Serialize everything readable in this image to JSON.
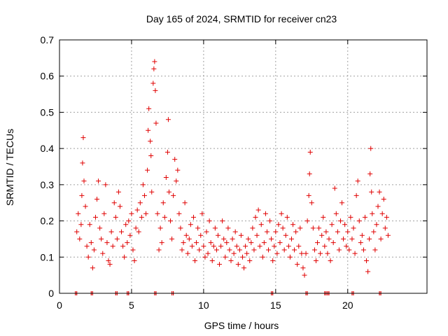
{
  "chart_data": {
    "type": "scatter",
    "title": "Day 165 of 2024, SRMTID for receiver cn23",
    "xlabel": "GPS time / hours",
    "ylabel": "SRMTID / TECUs",
    "xlim": [
      0,
      25.5
    ],
    "ylim": [
      0,
      0.7
    ],
    "xticks": [
      0,
      5,
      10,
      15,
      20
    ],
    "xtick_labels": [
      "0",
      "5",
      "10",
      "15",
      "20"
    ],
    "yticks": [
      0,
      0.1,
      0.2,
      0.3,
      0.4,
      0.5,
      0.6,
      0.7
    ],
    "ytick_labels": [
      "0",
      "0.1",
      "0.2",
      "0.3",
      "0.4",
      "0.5",
      "0.6",
      "0.7"
    ],
    "grid": true,
    "marker": "+",
    "series_color": "#e00000",
    "series": [
      {
        "name": "SRMTID",
        "points": [
          [
            1.2,
            0.17
          ],
          [
            1.3,
            0.22
          ],
          [
            1.4,
            0.15
          ],
          [
            1.5,
            0.19
          ],
          [
            1.55,
            0.27
          ],
          [
            1.6,
            0.36
          ],
          [
            1.65,
            0.43
          ],
          [
            1.7,
            0.31
          ],
          [
            1.8,
            0.24
          ],
          [
            1.9,
            0.13
          ],
          [
            2.0,
            0.1
          ],
          [
            2.1,
            0.19
          ],
          [
            2.2,
            0.14
          ],
          [
            2.3,
            0.07
          ],
          [
            2.4,
            0.12
          ],
          [
            2.5,
            0.21
          ],
          [
            2.6,
            0.26
          ],
          [
            2.7,
            0.31
          ],
          [
            2.8,
            0.18
          ],
          [
            2.9,
            0.15
          ],
          [
            3.0,
            0.11
          ],
          [
            3.1,
            0.22
          ],
          [
            3.2,
            0.3
          ],
          [
            3.3,
            0.14
          ],
          [
            3.4,
            0.09
          ],
          [
            3.5,
            0.08
          ],
          [
            3.6,
            0.17
          ],
          [
            3.7,
            0.13
          ],
          [
            3.8,
            0.25
          ],
          [
            3.9,
            0.21
          ],
          [
            4.0,
            0.15
          ],
          [
            4.1,
            0.28
          ],
          [
            4.2,
            0.24
          ],
          [
            4.3,
            0.17
          ],
          [
            4.4,
            0.13
          ],
          [
            4.5,
            0.1
          ],
          [
            4.6,
            0.19
          ],
          [
            4.7,
            0.14
          ],
          [
            4.8,
            0.2
          ],
          [
            4.9,
            0.16
          ],
          [
            5.0,
            0.22
          ],
          [
            5.1,
            0.12
          ],
          [
            5.2,
            0.09
          ],
          [
            5.3,
            0.18
          ],
          [
            5.4,
            0.23
          ],
          [
            5.5,
            0.17
          ],
          [
            5.6,
            0.25
          ],
          [
            5.7,
            0.21
          ],
          [
            5.8,
            0.3
          ],
          [
            5.9,
            0.27
          ],
          [
            6.0,
            0.22
          ],
          [
            6.1,
            0.34
          ],
          [
            6.15,
            0.45
          ],
          [
            6.2,
            0.51
          ],
          [
            6.3,
            0.42
          ],
          [
            6.35,
            0.38
          ],
          [
            6.4,
            0.28
          ],
          [
            6.5,
            0.58
          ],
          [
            6.55,
            0.62
          ],
          [
            6.6,
            0.64
          ],
          [
            6.65,
            0.56
          ],
          [
            6.7,
            0.47
          ],
          [
            6.8,
            0.22
          ],
          [
            6.9,
            0.12
          ],
          [
            7.0,
            0.18
          ],
          [
            7.1,
            0.14
          ],
          [
            7.2,
            0.25
          ],
          [
            7.3,
            0.21
          ],
          [
            7.4,
            0.32
          ],
          [
            7.5,
            0.39
          ],
          [
            7.55,
            0.48
          ],
          [
            7.6,
            0.28
          ],
          [
            7.7,
            0.2
          ],
          [
            7.8,
            0.15
          ],
          [
            7.9,
            0.27
          ],
          [
            8.0,
            0.37
          ],
          [
            8.1,
            0.31
          ],
          [
            8.2,
            0.34
          ],
          [
            8.3,
            0.22
          ],
          [
            8.4,
            0.18
          ],
          [
            8.5,
            0.12
          ],
          [
            8.6,
            0.14
          ],
          [
            8.7,
            0.25
          ],
          [
            8.8,
            0.16
          ],
          [
            8.9,
            0.11
          ],
          [
            9.0,
            0.15
          ],
          [
            9.1,
            0.19
          ],
          [
            9.2,
            0.13
          ],
          [
            9.3,
            0.21
          ],
          [
            9.4,
            0.09
          ],
          [
            9.5,
            0.14
          ],
          [
            9.6,
            0.18
          ],
          [
            9.7,
            0.12
          ],
          [
            9.8,
            0.16
          ],
          [
            9.9,
            0.22
          ],
          [
            10.0,
            0.13
          ],
          [
            10.1,
            0.1
          ],
          [
            10.2,
            0.17
          ],
          [
            10.3,
            0.11
          ],
          [
            10.4,
            0.2
          ],
          [
            10.5,
            0.14
          ],
          [
            10.6,
            0.09
          ],
          [
            10.7,
            0.13
          ],
          [
            10.8,
            0.18
          ],
          [
            10.9,
            0.12
          ],
          [
            11.0,
            0.16
          ],
          [
            11.1,
            0.08
          ],
          [
            11.2,
            0.13
          ],
          [
            11.3,
            0.2
          ],
          [
            11.4,
            0.15
          ],
          [
            11.5,
            0.1
          ],
          [
            11.6,
            0.14
          ],
          [
            11.7,
            0.18
          ],
          [
            11.8,
            0.12
          ],
          [
            11.9,
            0.09
          ],
          [
            12.0,
            0.15
          ],
          [
            12.1,
            0.11
          ],
          [
            12.2,
            0.17
          ],
          [
            12.3,
            0.13
          ],
          [
            12.4,
            0.08
          ],
          [
            12.5,
            0.12
          ],
          [
            12.6,
            0.16
          ],
          [
            12.7,
            0.1
          ],
          [
            12.8,
            0.07
          ],
          [
            12.9,
            0.13
          ],
          [
            13.0,
            0.11
          ],
          [
            13.1,
            0.15
          ],
          [
            13.2,
            0.09
          ],
          [
            13.3,
            0.14
          ],
          [
            13.4,
            0.18
          ],
          [
            13.5,
            0.12
          ],
          [
            13.6,
            0.21
          ],
          [
            13.7,
            0.16
          ],
          [
            13.8,
            0.23
          ],
          [
            13.9,
            0.13
          ],
          [
            14.0,
            0.19
          ],
          [
            14.1,
            0.1
          ],
          [
            14.2,
            0.14
          ],
          [
            14.3,
            0.22
          ],
          [
            14.4,
            0.17
          ],
          [
            14.5,
            0.12
          ],
          [
            14.6,
            0.2
          ],
          [
            14.7,
            0.15
          ],
          [
            14.8,
            0.09
          ],
          [
            14.9,
            0.13
          ],
          [
            15.0,
            0.17
          ],
          [
            15.1,
            0.11
          ],
          [
            15.2,
            0.19
          ],
          [
            15.3,
            0.14
          ],
          [
            15.4,
            0.22
          ],
          [
            15.5,
            0.18
          ],
          [
            15.6,
            0.12
          ],
          [
            15.7,
            0.16
          ],
          [
            15.8,
            0.21
          ],
          [
            15.9,
            0.13
          ],
          [
            16.0,
            0.1
          ],
          [
            16.1,
            0.15
          ],
          [
            16.2,
            0.19
          ],
          [
            16.3,
            0.12
          ],
          [
            16.4,
            0.17
          ],
          [
            16.5,
            0.08
          ],
          [
            16.6,
            0.13
          ],
          [
            16.7,
            0.18
          ],
          [
            16.8,
            0.11
          ],
          [
            16.9,
            0.07
          ],
          [
            17.0,
            0.05
          ],
          [
            17.1,
            0.11
          ],
          [
            17.2,
            0.2
          ],
          [
            17.3,
            0.27
          ],
          [
            17.35,
            0.33
          ],
          [
            17.4,
            0.39
          ],
          [
            17.5,
            0.25
          ],
          [
            17.6,
            0.18
          ],
          [
            17.7,
            0.12
          ],
          [
            17.8,
            0.09
          ],
          [
            17.9,
            0.14
          ],
          [
            18.0,
            0.18
          ],
          [
            18.1,
            0.11
          ],
          [
            18.2,
            0.16
          ],
          [
            18.3,
            0.21
          ],
          [
            18.4,
            0.13
          ],
          [
            18.5,
            0.17
          ],
          [
            18.6,
            0.11
          ],
          [
            18.7,
            0.15
          ],
          [
            18.8,
            0.09
          ],
          [
            18.9,
            0.19
          ],
          [
            19.0,
            0.14
          ],
          [
            19.1,
            0.29
          ],
          [
            19.2,
            0.22
          ],
          [
            19.3,
            0.17
          ],
          [
            19.4,
            0.12
          ],
          [
            19.5,
            0.2
          ],
          [
            19.6,
            0.25
          ],
          [
            19.7,
            0.15
          ],
          [
            19.8,
            0.19
          ],
          [
            19.9,
            0.13
          ],
          [
            20.0,
            0.17
          ],
          [
            20.1,
            0.12
          ],
          [
            20.2,
            0.21
          ],
          [
            20.3,
            0.15
          ],
          [
            20.4,
            0.18
          ],
          [
            20.5,
            0.11
          ],
          [
            20.6,
            0.27
          ],
          [
            20.7,
            0.31
          ],
          [
            20.8,
            0.2
          ],
          [
            20.9,
            0.14
          ],
          [
            21.0,
            0.16
          ],
          [
            21.1,
            0.12
          ],
          [
            21.2,
            0.21
          ],
          [
            21.3,
            0.09
          ],
          [
            21.4,
            0.06
          ],
          [
            21.5,
            0.15
          ],
          [
            21.55,
            0.33
          ],
          [
            21.6,
            0.4
          ],
          [
            21.65,
            0.28
          ],
          [
            21.7,
            0.22
          ],
          [
            21.8,
            0.17
          ],
          [
            21.9,
            0.12
          ],
          [
            22.0,
            0.19
          ],
          [
            22.1,
            0.24
          ],
          [
            22.2,
            0.28
          ],
          [
            22.3,
            0.15
          ],
          [
            22.4,
            0.22
          ],
          [
            22.5,
            0.26
          ],
          [
            22.6,
            0.18
          ],
          [
            22.7,
            0.21
          ],
          [
            22.8,
            0.16
          ]
        ]
      }
    ],
    "zero_points_x": [
      1.1,
      2.2,
      3.9,
      4.7,
      6.6,
      7.8,
      14.7,
      17.1,
      18.4,
      18.6,
      20.3,
      22.2
    ]
  }
}
